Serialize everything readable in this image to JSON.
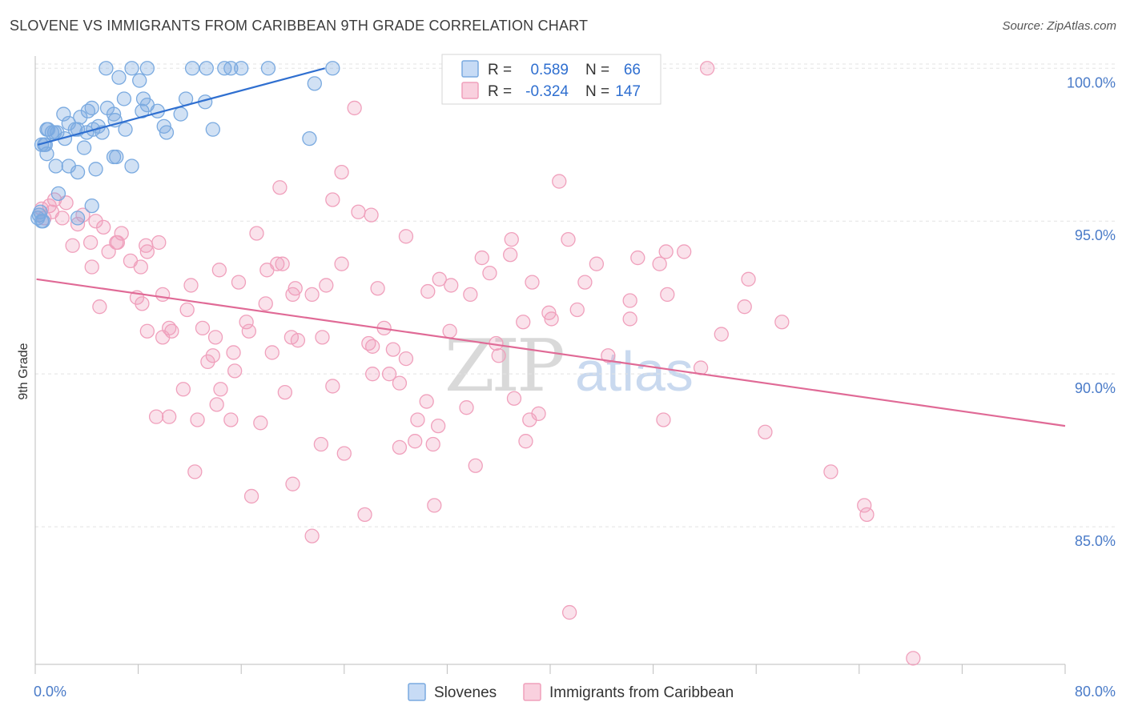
{
  "header": {
    "title": "SLOVENE VS IMMIGRANTS FROM CARIBBEAN 9TH GRADE CORRELATION CHART",
    "source": "Source: ZipAtlas.com"
  },
  "legend_top": {
    "rows": [
      {
        "r_label": "R =",
        "r_value": "0.589",
        "n_label": "N =",
        "n_value": "66",
        "color": "#7aaae0"
      },
      {
        "r_label": "R =",
        "r_value": "-0.324",
        "n_label": "N =",
        "n_value": "147",
        "color": "#f0a0bc"
      }
    ]
  },
  "legend_bottom": {
    "items": [
      {
        "label": "Slovenes",
        "color": "#7aaae0"
      },
      {
        "label": "Immigrants from Caribbean",
        "color": "#f0a0bc"
      }
    ]
  },
  "watermark": {
    "zip": "ZIP",
    "atlas": "atlas"
  },
  "chart_data": {
    "type": "scatter",
    "title": "SLOVENE VS IMMIGRANTS FROM CARIBBEAN 9TH GRADE CORRELATION CHART",
    "xlabel": "",
    "ylabel": "9th Grade",
    "xlim": [
      0,
      80
    ],
    "ylim": [
      80.5,
      100.4
    ],
    "x_tick_labels": [
      "0.0%",
      "80.0%"
    ],
    "y_ticks": [
      85,
      90,
      95,
      100
    ],
    "y_tick_labels": [
      "85.0%",
      "90.0%",
      "95.0%",
      "100.0%"
    ],
    "grid": true,
    "legend_position": "top-center",
    "series": [
      {
        "name": "Slovenes",
        "color": "#7aaae0",
        "line_color": "#2f6fd0",
        "trend": {
          "x": [
            0.2,
            22.5
          ],
          "y": [
            97.5,
            100.0
          ]
        },
        "points": [
          [
            5.5,
            100
          ],
          [
            7.5,
            100
          ],
          [
            8.7,
            100
          ],
          [
            12.2,
            100
          ],
          [
            13.3,
            100
          ],
          [
            14.7,
            100
          ],
          [
            15.2,
            100
          ],
          [
            16,
            100
          ],
          [
            18.1,
            100
          ],
          [
            23.1,
            100
          ],
          [
            6.5,
            99.7
          ],
          [
            8.1,
            99.6
          ],
          [
            21.7,
            99.5
          ],
          [
            8.4,
            99.0
          ],
          [
            11.7,
            99.0
          ],
          [
            6.9,
            99.0
          ],
          [
            13.2,
            98.9
          ],
          [
            8.7,
            98.8
          ],
          [
            5.6,
            98.7
          ],
          [
            4.4,
            98.7
          ],
          [
            8.3,
            98.6
          ],
          [
            9.5,
            98.6
          ],
          [
            4.1,
            98.6
          ],
          [
            6.1,
            98.5
          ],
          [
            2.2,
            98.5
          ],
          [
            11.3,
            98.5
          ],
          [
            3.5,
            98.4
          ],
          [
            6.2,
            98.3
          ],
          [
            2.6,
            98.2
          ],
          [
            4.9,
            98.1
          ],
          [
            3.3,
            98.0
          ],
          [
            7.0,
            98.0
          ],
          [
            4.5,
            98.0
          ],
          [
            10.0,
            98.1
          ],
          [
            13.8,
            98.0
          ],
          [
            1.0,
            98.0
          ],
          [
            1.5,
            97.9
          ],
          [
            5.2,
            97.9
          ],
          [
            1.7,
            97.9
          ],
          [
            10.2,
            97.9
          ],
          [
            4.0,
            97.9
          ],
          [
            3.1,
            98.0
          ],
          [
            0.9,
            98.0
          ],
          [
            2.3,
            97.7
          ],
          [
            21.3,
            97.7
          ],
          [
            1.3,
            97.9
          ],
          [
            0.7,
            97.5
          ],
          [
            0.5,
            97.5
          ],
          [
            0.8,
            97.5
          ],
          [
            3.8,
            97.4
          ],
          [
            0.9,
            97.2
          ],
          [
            6.1,
            97.1
          ],
          [
            6.3,
            97.1
          ],
          [
            7.5,
            96.8
          ],
          [
            1.6,
            96.8
          ],
          [
            2.6,
            96.8
          ],
          [
            4.7,
            96.7
          ],
          [
            3.3,
            96.6
          ],
          [
            1.8,
            95.9
          ],
          [
            4.4,
            95.5
          ],
          [
            0.4,
            95.3
          ],
          [
            3.3,
            95.1
          ],
          [
            0.5,
            95.0
          ],
          [
            0.2,
            95.1
          ],
          [
            0.3,
            95.2
          ],
          [
            0.6,
            95.0
          ]
        ]
      },
      {
        "name": "Immigrants from Caribbean",
        "color": "#f0a0bc",
        "line_color": "#e06a96",
        "trend": {
          "x": [
            0.1,
            80
          ],
          "y": [
            93.1,
            88.3
          ]
        },
        "points": [
          [
            52.2,
            100
          ],
          [
            24.8,
            98.7
          ],
          [
            40.7,
            96.3
          ],
          [
            23.8,
            96.6
          ],
          [
            19.0,
            96.1
          ],
          [
            23.1,
            95.7
          ],
          [
            25.1,
            95.3
          ],
          [
            26.1,
            95.2
          ],
          [
            1.5,
            95.7
          ],
          [
            2.4,
            95.6
          ],
          [
            1.1,
            95.5
          ],
          [
            0.5,
            95.4
          ],
          [
            3.7,
            95.2
          ],
          [
            2.1,
            95.1
          ],
          [
            0.7,
            95.1
          ],
          [
            1.3,
            95.3
          ],
          [
            4.7,
            95.0
          ],
          [
            3.3,
            94.9
          ],
          [
            5.3,
            94.8
          ],
          [
            6.7,
            94.6
          ],
          [
            17.2,
            94.6
          ],
          [
            28.8,
            94.5
          ],
          [
            37.0,
            94.4
          ],
          [
            41.4,
            94.4
          ],
          [
            4.3,
            94.3
          ],
          [
            6.3,
            94.3
          ],
          [
            6.4,
            94.3
          ],
          [
            9.6,
            94.3
          ],
          [
            2.9,
            94.2
          ],
          [
            8.6,
            94.2
          ],
          [
            5.7,
            94.0
          ],
          [
            8.7,
            94.0
          ],
          [
            49.0,
            94.0
          ],
          [
            50.4,
            94.0
          ],
          [
            36.9,
            93.9
          ],
          [
            7.4,
            93.7
          ],
          [
            34.7,
            93.8
          ],
          [
            46.8,
            93.8
          ],
          [
            23.8,
            93.6
          ],
          [
            18.8,
            93.6
          ],
          [
            19.2,
            93.6
          ],
          [
            43.6,
            93.6
          ],
          [
            48.5,
            93.6
          ],
          [
            4.4,
            93.5
          ],
          [
            8.2,
            93.5
          ],
          [
            14.3,
            93.4
          ],
          [
            18.0,
            93.4
          ],
          [
            35.3,
            93.3
          ],
          [
            31.4,
            93.1
          ],
          [
            55.4,
            93.1
          ],
          [
            15.8,
            93.0
          ],
          [
            22.6,
            92.9
          ],
          [
            38.6,
            93.0
          ],
          [
            42.7,
            93.0
          ],
          [
            12.1,
            92.9
          ],
          [
            20.2,
            92.8
          ],
          [
            32.3,
            92.9
          ],
          [
            26.6,
            92.8
          ],
          [
            30.5,
            92.7
          ],
          [
            20.0,
            92.6
          ],
          [
            21.5,
            92.6
          ],
          [
            9.9,
            92.6
          ],
          [
            7.9,
            92.5
          ],
          [
            33.8,
            92.6
          ],
          [
            49.1,
            92.6
          ],
          [
            46.2,
            92.4
          ],
          [
            8.3,
            92.3
          ],
          [
            17.9,
            92.3
          ],
          [
            5.0,
            92.2
          ],
          [
            11.8,
            92.1
          ],
          [
            55.1,
            92.2
          ],
          [
            39.9,
            92.0
          ],
          [
            42.1,
            92.1
          ],
          [
            40.1,
            91.8
          ],
          [
            46.2,
            91.8
          ],
          [
            37.9,
            91.7
          ],
          [
            58.0,
            91.7
          ],
          [
            16.4,
            91.7
          ],
          [
            10.4,
            91.5
          ],
          [
            13.0,
            91.5
          ],
          [
            27.1,
            91.5
          ],
          [
            8.7,
            91.4
          ],
          [
            10.6,
            91.4
          ],
          [
            16.6,
            91.4
          ],
          [
            32.2,
            91.4
          ],
          [
            53.3,
            91.3
          ],
          [
            9.9,
            91.2
          ],
          [
            14.0,
            91.2
          ],
          [
            19.9,
            91.2
          ],
          [
            20.4,
            91.1
          ],
          [
            22.3,
            91.2
          ],
          [
            25.9,
            91.0
          ],
          [
            35.8,
            91.0
          ],
          [
            26.2,
            90.9
          ],
          [
            27.8,
            90.8
          ],
          [
            18.4,
            90.7
          ],
          [
            13.8,
            90.6
          ],
          [
            15.4,
            90.7
          ],
          [
            36.0,
            90.6
          ],
          [
            44.5,
            90.6
          ],
          [
            13.4,
            90.4
          ],
          [
            28.8,
            90.5
          ],
          [
            51.7,
            90.2
          ],
          [
            15.5,
            90.1
          ],
          [
            26.2,
            90.0
          ],
          [
            27.5,
            90.0
          ],
          [
            28.3,
            89.7
          ],
          [
            23.1,
            89.6
          ],
          [
            11.5,
            89.5
          ],
          [
            14.4,
            89.5
          ],
          [
            19.4,
            89.4
          ],
          [
            37.2,
            89.2
          ],
          [
            14.1,
            89.0
          ],
          [
            30.4,
            89.1
          ],
          [
            33.5,
            88.9
          ],
          [
            9.4,
            88.6
          ],
          [
            10.4,
            88.6
          ],
          [
            12.6,
            88.5
          ],
          [
            15.2,
            88.5
          ],
          [
            17.5,
            88.4
          ],
          [
            29.7,
            88.5
          ],
          [
            38.4,
            88.5
          ],
          [
            48.8,
            88.5
          ],
          [
            39.1,
            88.7
          ],
          [
            31.3,
            88.3
          ],
          [
            56.7,
            88.1
          ],
          [
            29.5,
            87.8
          ],
          [
            30.9,
            87.7
          ],
          [
            22.2,
            87.7
          ],
          [
            38.1,
            87.8
          ],
          [
            28.3,
            87.6
          ],
          [
            24.0,
            87.4
          ],
          [
            34.2,
            87.0
          ],
          [
            12.4,
            86.8
          ],
          [
            61.8,
            86.8
          ],
          [
            20.0,
            86.4
          ],
          [
            16.8,
            86.0
          ],
          [
            64.4,
            85.7
          ],
          [
            64.6,
            85.4
          ],
          [
            31.0,
            85.7
          ],
          [
            25.6,
            85.4
          ],
          [
            21.5,
            84.7
          ],
          [
            41.5,
            82.2
          ],
          [
            68.2,
            80.7
          ]
        ]
      }
    ]
  }
}
